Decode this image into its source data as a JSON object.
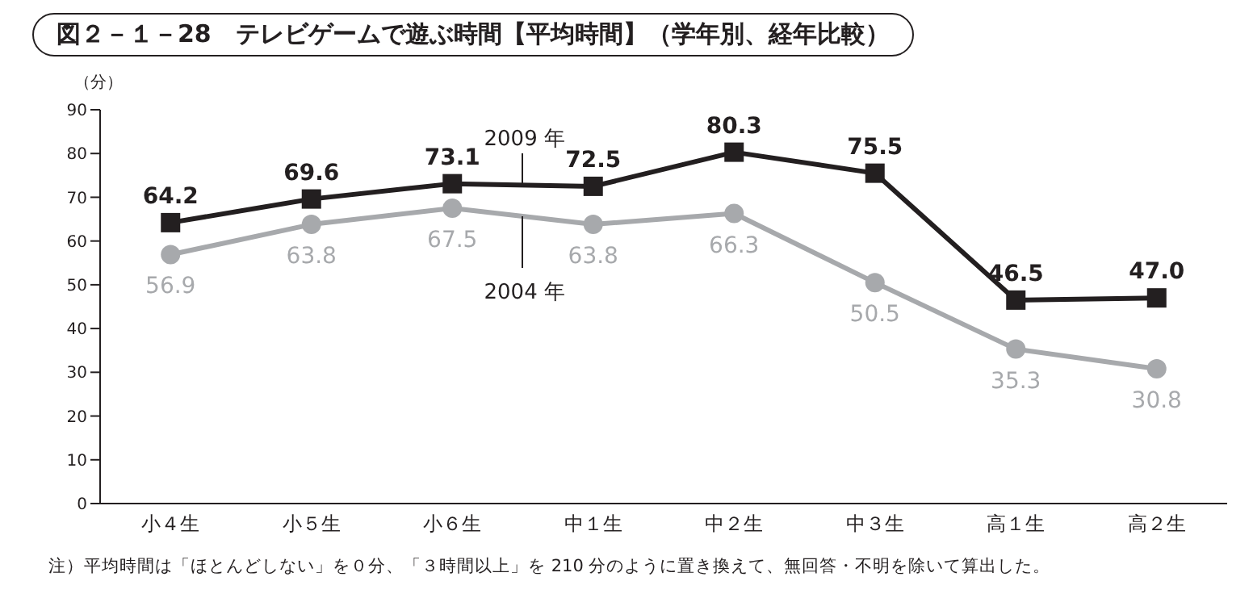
{
  "chart_data": {
    "type": "line",
    "title": "図２－１－28　テレビゲームで遊ぶ時間【平均時間】（学年別、経年比較）",
    "ylabel": "（分）",
    "categories": [
      "小４生",
      "小５生",
      "小６生",
      "中１生",
      "中２生",
      "中３生",
      "高１生",
      "高２生"
    ],
    "series": [
      {
        "name": "2009 年",
        "color": "#231f20",
        "marker": "square",
        "values": [
          64.2,
          69.6,
          73.1,
          72.5,
          80.3,
          75.5,
          46.5,
          47.0
        ],
        "value_labels": [
          "64.2",
          "69.6",
          "73.1",
          "72.5",
          "80.3",
          "75.5",
          "46.5",
          "47.0"
        ]
      },
      {
        "name": "2004 年",
        "color": "#a7a9ac",
        "marker": "circle",
        "values": [
          56.9,
          63.8,
          67.5,
          63.8,
          66.3,
          50.5,
          35.3,
          30.8
        ],
        "value_labels": [
          "56.9",
          "63.8",
          "67.5",
          "63.8",
          "66.3",
          "50.5",
          "35.3",
          "30.8"
        ]
      }
    ],
    "ylim": [
      0,
      90
    ],
    "yticks": [
      0,
      10,
      20,
      30,
      40,
      50,
      60,
      70,
      80,
      90
    ],
    "grid": false,
    "legend": false,
    "line_style": "solid",
    "annotations": [
      "注）平均時間は「ほとんどしない」を０分、「３時間以上」を 210 分のように置き換えて、無回答・不明を除いて算出した。"
    ]
  }
}
